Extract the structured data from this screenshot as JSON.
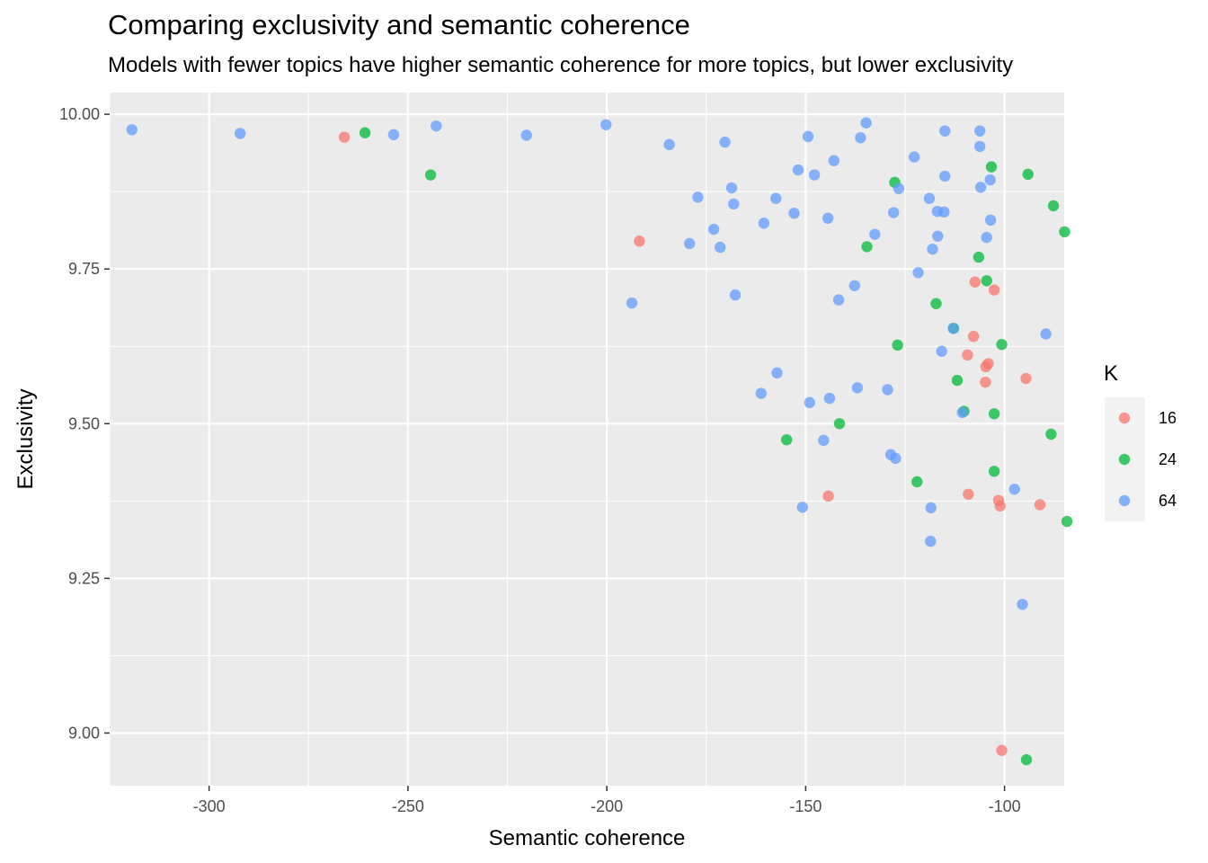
{
  "chart_data": {
    "type": "scatter",
    "title": "Comparing exclusivity and semantic coherence",
    "subtitle": "Models with fewer topics have higher semantic coherence for more topics, but lower exclusivity",
    "xlabel": "Semantic coherence",
    "ylabel": "Exclusivity",
    "xlim": [
      -325,
      -85
    ],
    "ylim": [
      8.915,
      10.035
    ],
    "xticks": [
      -300,
      -250,
      -200,
      -150,
      -100
    ],
    "xtick_labels": [
      "-300",
      "-250",
      "-200",
      "-150",
      "-100"
    ],
    "yticks": [
      9.0,
      9.25,
      9.5,
      9.75,
      10.0
    ],
    "ytick_labels": [
      "9.00",
      "9.25",
      "9.50",
      "9.75",
      "10.00"
    ],
    "grid": true,
    "legend": {
      "title": "K",
      "position": "right"
    },
    "series": [
      {
        "name": "16",
        "color": "#F8766D",
        "points": [
          [
            -266.0,
            9.963
          ],
          [
            -191.8,
            9.795
          ],
          [
            -107.4,
            9.729
          ],
          [
            -102.6,
            9.716
          ],
          [
            -107.8,
            9.641
          ],
          [
            -109.3,
            9.611
          ],
          [
            -104.1,
            9.597
          ],
          [
            -104.7,
            9.592
          ],
          [
            -94.6,
            9.573
          ],
          [
            -104.8,
            9.567
          ],
          [
            -144.3,
            9.383
          ],
          [
            -109.1,
            9.386
          ],
          [
            -101.5,
            9.376
          ],
          [
            -101.1,
            9.367
          ],
          [
            -91.1,
            9.369
          ],
          [
            -100.7,
            8.972
          ]
        ]
      },
      {
        "name": "24",
        "color": "#00BA38",
        "points": [
          [
            -260.8,
            9.97
          ],
          [
            -244.3,
            9.902
          ],
          [
            -103.3,
            9.915
          ],
          [
            -94.1,
            9.903
          ],
          [
            -127.6,
            9.89
          ],
          [
            -87.7,
            9.852
          ],
          [
            -84.9,
            9.81
          ],
          [
            -134.6,
            9.786
          ],
          [
            -106.5,
            9.769
          ],
          [
            -104.5,
            9.731
          ],
          [
            -117.2,
            9.694
          ],
          [
            -112.8,
            9.654
          ],
          [
            -126.9,
            9.627
          ],
          [
            -100.7,
            9.628
          ],
          [
            -111.9,
            9.57
          ],
          [
            -110.2,
            9.52
          ],
          [
            -102.6,
            9.516
          ],
          [
            -141.5,
            9.5
          ],
          [
            -154.8,
            9.474
          ],
          [
            -88.3,
            9.483
          ],
          [
            -102.6,
            9.423
          ],
          [
            -122.0,
            9.406
          ],
          [
            -84.3,
            9.342
          ],
          [
            -94.5,
            8.957
          ]
        ]
      },
      {
        "name": "64",
        "color": "#619CFF",
        "points": [
          [
            -319.4,
            9.975
          ],
          [
            -292.2,
            9.969
          ],
          [
            -253.6,
            9.967
          ],
          [
            -242.9,
            9.981
          ],
          [
            -220.2,
            9.966
          ],
          [
            -200.2,
            9.983
          ],
          [
            -184.3,
            9.951
          ],
          [
            -170.3,
            9.955
          ],
          [
            -149.4,
            9.964
          ],
          [
            -134.8,
            9.986
          ],
          [
            -136.2,
            9.962
          ],
          [
            -115.0,
            9.973
          ],
          [
            -106.2,
            9.973
          ],
          [
            -106.2,
            9.948
          ],
          [
            -122.7,
            9.931
          ],
          [
            -142.9,
            9.925
          ],
          [
            -151.9,
            9.91
          ],
          [
            -147.8,
            9.902
          ],
          [
            -115.0,
            9.9
          ],
          [
            -103.6,
            9.894
          ],
          [
            -106.0,
            9.882
          ],
          [
            -126.6,
            9.88
          ],
          [
            -168.6,
            9.881
          ],
          [
            -177.1,
            9.866
          ],
          [
            -157.5,
            9.864
          ],
          [
            -118.9,
            9.864
          ],
          [
            -168.1,
            9.855
          ],
          [
            -116.9,
            9.843
          ],
          [
            -115.2,
            9.842
          ],
          [
            -127.9,
            9.841
          ],
          [
            -152.9,
            9.84
          ],
          [
            -144.4,
            9.832
          ],
          [
            -103.5,
            9.829
          ],
          [
            -160.5,
            9.824
          ],
          [
            -173.1,
            9.814
          ],
          [
            -132.6,
            9.806
          ],
          [
            -116.8,
            9.803
          ],
          [
            -104.5,
            9.801
          ],
          [
            -179.2,
            9.791
          ],
          [
            -171.5,
            9.785
          ],
          [
            -118.1,
            9.782
          ],
          [
            -121.7,
            9.744
          ],
          [
            -137.7,
            9.723
          ],
          [
            -167.7,
            9.708
          ],
          [
            -141.7,
            9.7
          ],
          [
            -193.7,
            9.695
          ],
          [
            -112.9,
            9.654
          ],
          [
            -89.6,
            9.645
          ],
          [
            -115.8,
            9.617
          ],
          [
            -157.2,
            9.582
          ],
          [
            -137.0,
            9.558
          ],
          [
            -129.4,
            9.555
          ],
          [
            -161.2,
            9.549
          ],
          [
            -144.0,
            9.541
          ],
          [
            -149.0,
            9.534
          ],
          [
            -110.6,
            9.518
          ],
          [
            -145.5,
            9.473
          ],
          [
            -128.6,
            9.45
          ],
          [
            -127.4,
            9.444
          ],
          [
            -97.5,
            9.394
          ],
          [
            -118.5,
            9.364
          ],
          [
            -150.8,
            9.365
          ],
          [
            -118.6,
            9.31
          ],
          [
            -95.5,
            9.208
          ]
        ]
      }
    ]
  }
}
